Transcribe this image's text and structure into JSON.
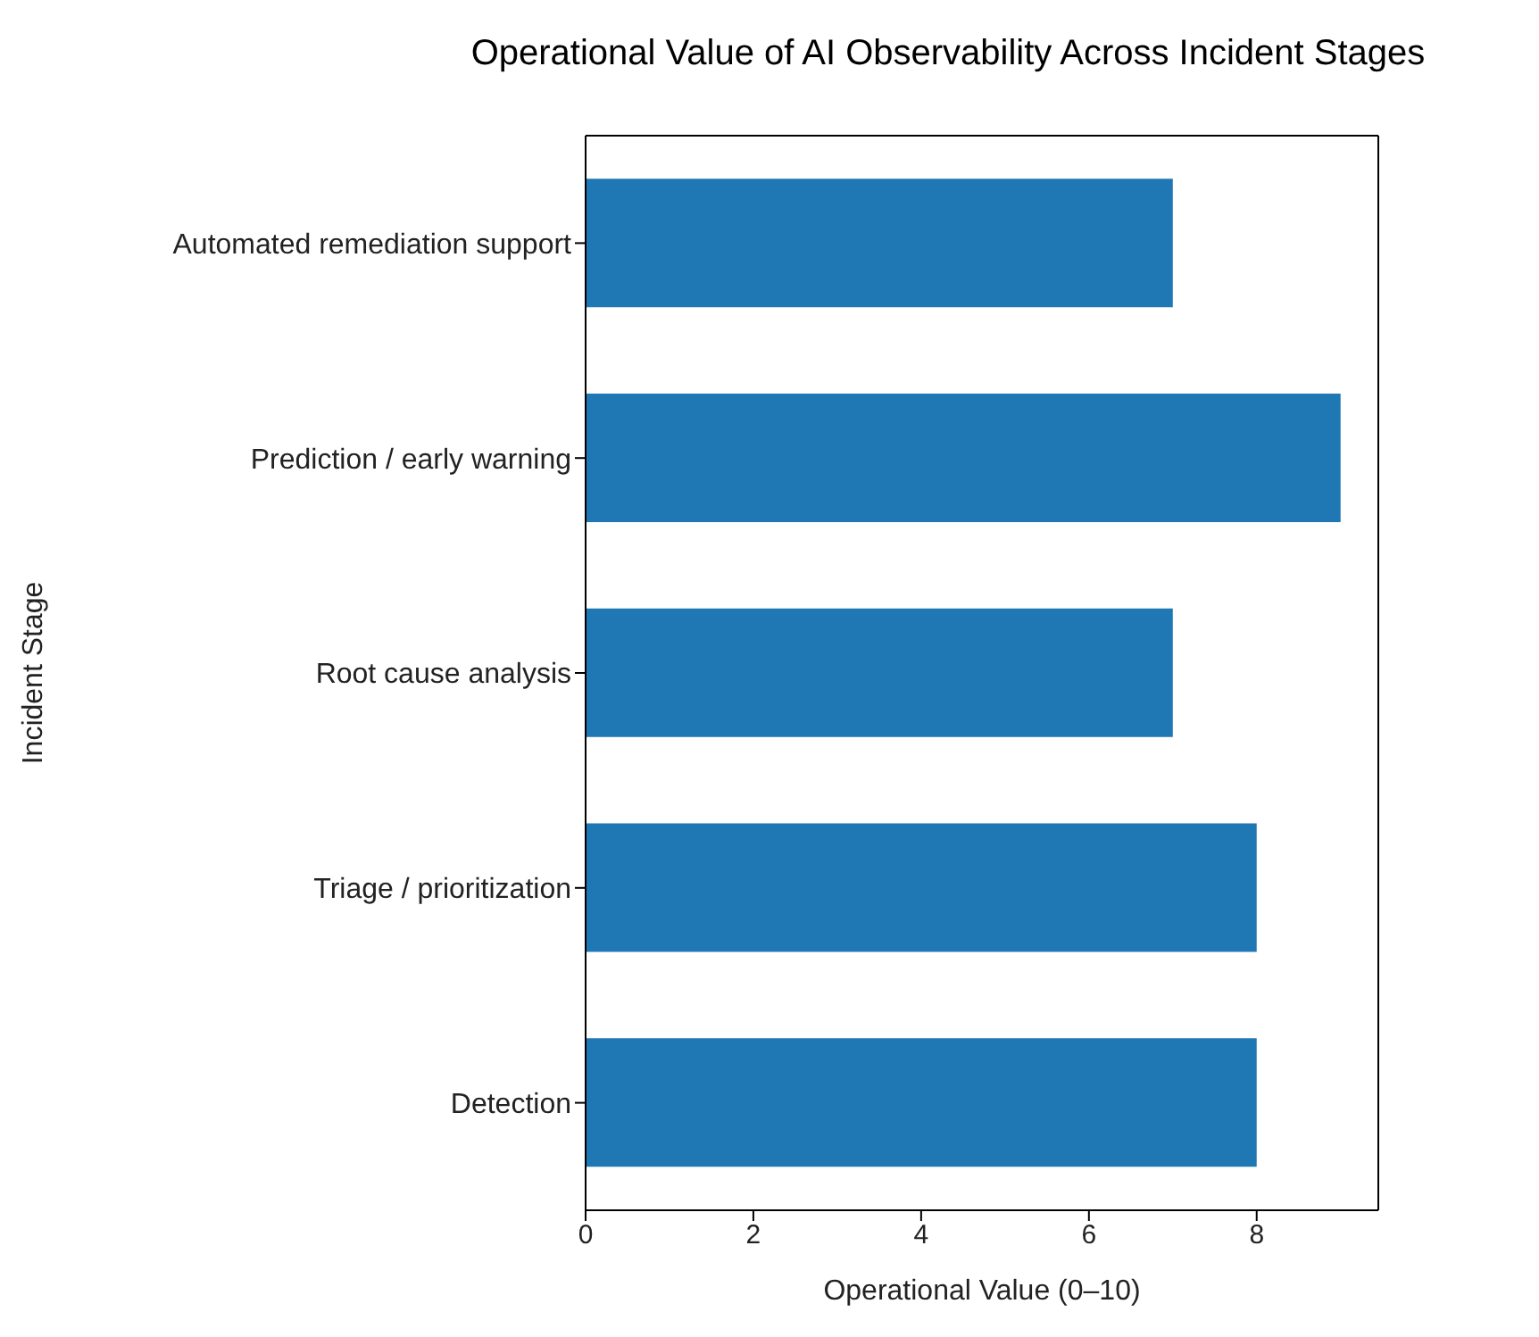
{
  "chart_data": {
    "type": "bar",
    "orientation": "horizontal",
    "title": "Operational Value of AI Observability Across Incident Stages",
    "xlabel": "Operational Value (0–10)",
    "ylabel": "Incident Stage",
    "categories": [
      "Automated remediation support",
      "Prediction / early warning",
      "Root cause analysis",
      "Triage / prioritization",
      "Detection"
    ],
    "values": [
      7,
      9,
      7,
      8,
      8
    ],
    "color": "#1f77b4",
    "xlim": [
      0,
      9.45
    ],
    "xticks": [
      0,
      2,
      4,
      6,
      8
    ]
  }
}
